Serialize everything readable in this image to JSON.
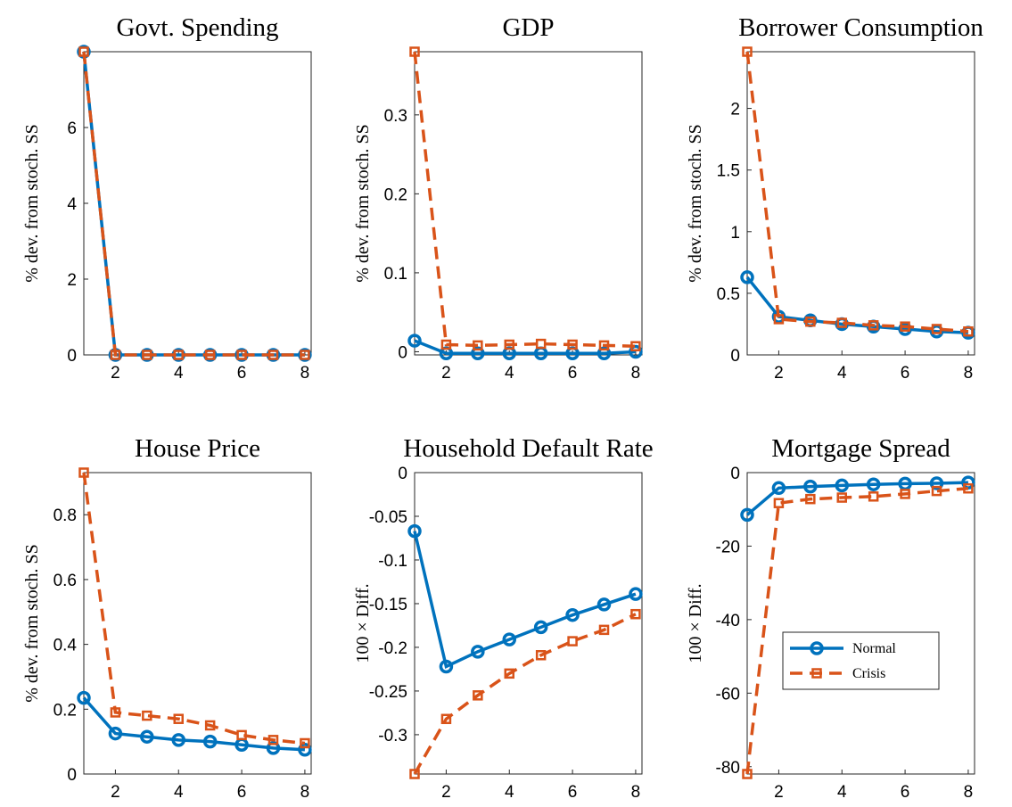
{
  "chart_data": [
    {
      "type": "line",
      "title": "Govt. Spending",
      "y_label": "% dev. from stoch. SS",
      "x": [
        1,
        2,
        3,
        4,
        5,
        6,
        7,
        8
      ],
      "xlim": [
        1,
        8.2
      ],
      "xticks": [
        2,
        4,
        6,
        8
      ],
      "ylim": [
        0,
        8
      ],
      "yticks": [
        0,
        2,
        4,
        6
      ],
      "series": [
        {
          "color": "#0072bd",
          "marker": "circle",
          "linestyle": "solid",
          "values": [
            8,
            0,
            0,
            0,
            0,
            0,
            0,
            0
          ]
        },
        {
          "color": "#d95319",
          "marker": "square",
          "linestyle": "dashed",
          "values": [
            8,
            0,
            0,
            0,
            0,
            0,
            0,
            0
          ]
        }
      ]
    },
    {
      "type": "line",
      "title": "GDP",
      "y_label": "% dev. from stoch. SS",
      "x": [
        1,
        2,
        3,
        4,
        5,
        6,
        7,
        8
      ],
      "xlim": [
        1,
        8.2
      ],
      "xticks": [
        2,
        4,
        6,
        8
      ],
      "ylim": [
        -0.004,
        0.38
      ],
      "yticks": [
        0,
        0.1,
        0.2,
        0.3
      ],
      "series": [
        {
          "color": "#0072bd",
          "marker": "circle",
          "linestyle": "solid",
          "values": [
            0.014,
            -0.002,
            -0.002,
            -0.002,
            -0.002,
            -0.002,
            -0.002,
            0
          ]
        },
        {
          "color": "#d95319",
          "marker": "square",
          "linestyle": "dashed",
          "values": [
            0.38,
            0.009,
            0.008,
            0.009,
            0.01,
            0.009,
            0.008,
            0.007
          ]
        }
      ]
    },
    {
      "type": "line",
      "title": "Borrower Consumption",
      "y_label": "% dev. from stoch. SS",
      "x": [
        1,
        2,
        3,
        4,
        5,
        6,
        7,
        8
      ],
      "xlim": [
        1,
        8.2
      ],
      "xticks": [
        2,
        4,
        6,
        8
      ],
      "ylim": [
        0,
        2.46
      ],
      "yticks": [
        0,
        0.5,
        1,
        1.5,
        2
      ],
      "series": [
        {
          "color": "#0072bd",
          "marker": "circle",
          "linestyle": "solid",
          "values": [
            0.63,
            0.31,
            0.28,
            0.25,
            0.23,
            0.21,
            0.19,
            0.18
          ]
        },
        {
          "color": "#d95319",
          "marker": "square",
          "linestyle": "dashed",
          "values": [
            2.46,
            0.29,
            0.27,
            0.26,
            0.24,
            0.23,
            0.21,
            0.19
          ]
        }
      ]
    },
    {
      "type": "line",
      "title": "House Price",
      "y_label": "% dev. from stoch. SS",
      "x": [
        1,
        2,
        3,
        4,
        5,
        6,
        7,
        8
      ],
      "xlim": [
        1,
        8.2
      ],
      "xticks": [
        2,
        4,
        6,
        8
      ],
      "ylim": [
        0,
        0.93
      ],
      "yticks": [
        0,
        0.2,
        0.4,
        0.6,
        0.8
      ],
      "series": [
        {
          "color": "#0072bd",
          "marker": "circle",
          "linestyle": "solid",
          "values": [
            0.235,
            0.125,
            0.115,
            0.105,
            0.1,
            0.09,
            0.08,
            0.075
          ]
        },
        {
          "color": "#d95319",
          "marker": "square",
          "linestyle": "dashed",
          "values": [
            0.93,
            0.19,
            0.18,
            0.17,
            0.15,
            0.12,
            0.105,
            0.095
          ]
        }
      ]
    },
    {
      "type": "line",
      "title": "Household Default Rate",
      "y_label": "100 × Diff.",
      "x": [
        1,
        2,
        3,
        4,
        5,
        6,
        7,
        8
      ],
      "xlim": [
        1,
        8.2
      ],
      "xticks": [
        2,
        4,
        6,
        8
      ],
      "ylim": [
        -0.345,
        0
      ],
      "yticks": [
        0,
        -0.05,
        -0.1,
        -0.15,
        -0.2,
        -0.25,
        -0.3
      ],
      "series": [
        {
          "color": "#0072bd",
          "marker": "circle",
          "linestyle": "solid",
          "values": [
            -0.067,
            -0.222,
            -0.205,
            -0.191,
            -0.177,
            -0.163,
            -0.151,
            -0.139
          ]
        },
        {
          "color": "#d95319",
          "marker": "square",
          "linestyle": "dashed",
          "values": [
            -0.345,
            -0.282,
            -0.255,
            -0.23,
            -0.209,
            -0.193,
            -0.18,
            -0.162
          ]
        }
      ]
    },
    {
      "type": "line",
      "title": "Mortgage Spread",
      "y_label": "100 × Diff.",
      "x": [
        1,
        2,
        3,
        4,
        5,
        6,
        7,
        8
      ],
      "xlim": [
        1,
        8.2
      ],
      "xticks": [
        2,
        4,
        6,
        8
      ],
      "ylim": [
        -82,
        0
      ],
      "yticks": [
        0,
        -20,
        -40,
        -60,
        -80
      ],
      "legend": "center right",
      "series": [
        {
          "name": "Normal",
          "color": "#0072bd",
          "marker": "circle",
          "linestyle": "solid",
          "values": [
            -11.5,
            -4.2,
            -3.8,
            -3.5,
            -3.2,
            -3,
            -2.9,
            -2.7
          ]
        },
        {
          "name": "Crisis",
          "color": "#d95319",
          "marker": "square",
          "linestyle": "dashed",
          "values": [
            -82,
            -8.3,
            -7.2,
            -6.8,
            -6.5,
            -5.8,
            -5,
            -4.3
          ]
        }
      ]
    }
  ]
}
